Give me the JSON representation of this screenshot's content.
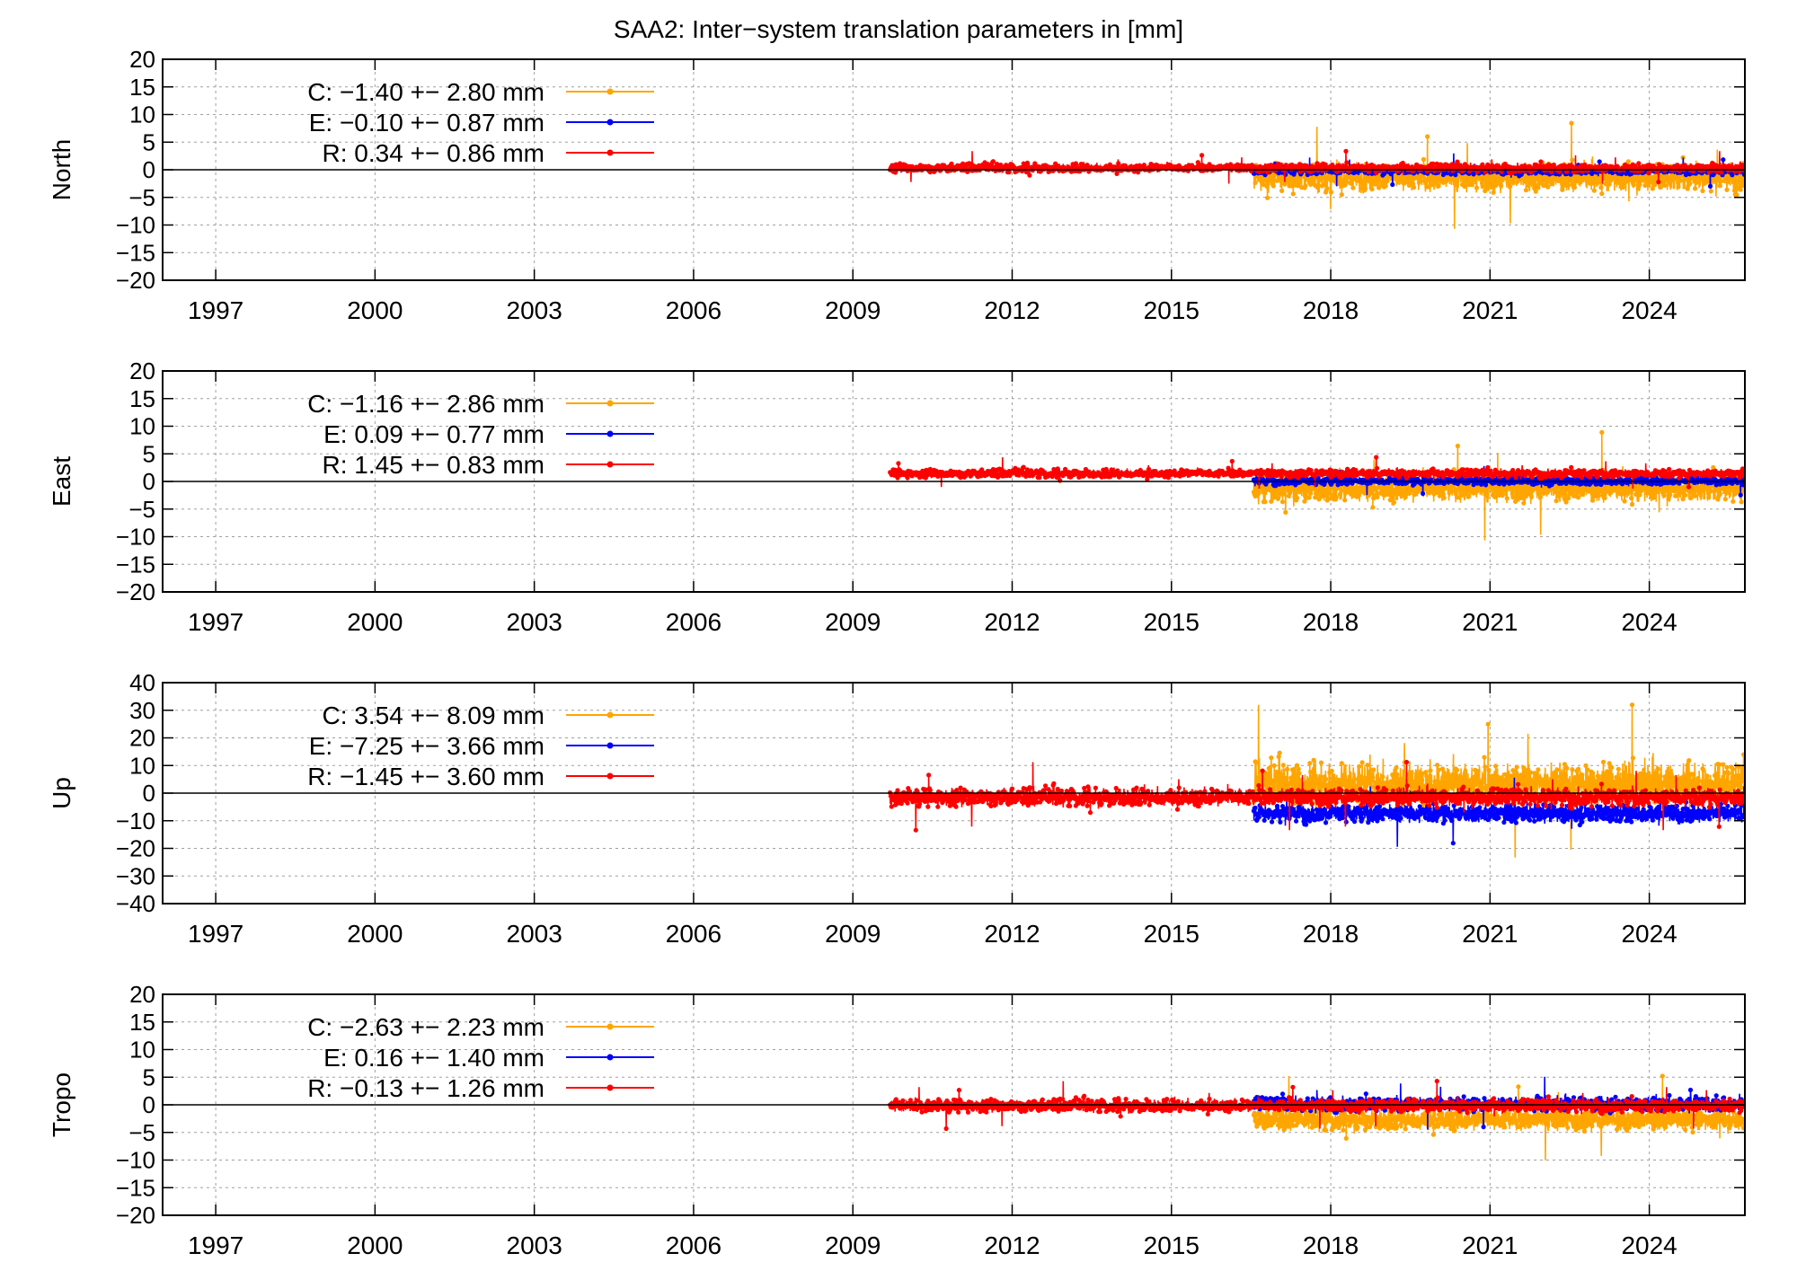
{
  "title": "SAA2: Inter−system translation parameters in [mm]",
  "colors": {
    "C": "#ffa500",
    "E": "#0000ff",
    "R": "#ff0000"
  },
  "x_tick_labels": [
    "1997",
    "2000",
    "2003",
    "2006",
    "2009",
    "2012",
    "2015",
    "2018",
    "2021",
    "2024"
  ],
  "chart_data": [
    {
      "type": "line",
      "ylabel": "North",
      "xlim": [
        1996.0,
        2025.8
      ],
      "ylim": [
        -20,
        20
      ],
      "yticks": [
        20,
        15,
        10,
        5,
        0,
        -5,
        -10,
        -15,
        -20
      ],
      "ytick_labels": [
        "20",
        "15",
        "10",
        "5",
        "0",
        "−5",
        "−10",
        "−15",
        "−20"
      ],
      "xticks": [
        1997,
        2000,
        2003,
        2006,
        2009,
        2012,
        2015,
        2018,
        2021,
        2024
      ],
      "grid": true,
      "legend_position": "top-left",
      "series": [
        {
          "key": "C",
          "name": "C:  −1.40 +− 2.80 mm",
          "color": "#ffa500",
          "mean": -1.4,
          "std": 2.8,
          "x_range": [
            2016.55,
            2025.8
          ]
        },
        {
          "key": "E",
          "name": "E:  −0.10 +− 0.87 mm",
          "color": "#0000ff",
          "mean": -0.1,
          "std": 0.87,
          "x_range": [
            2016.55,
            2025.8
          ]
        },
        {
          "key": "R",
          "name": "R:   0.34 +− 0.86 mm",
          "color": "#ff0000",
          "mean": 0.34,
          "std": 0.86,
          "x_range": [
            2009.7,
            2025.8
          ]
        }
      ]
    },
    {
      "type": "line",
      "ylabel": "East",
      "xlim": [
        1996.0,
        2025.8
      ],
      "ylim": [
        -20,
        20
      ],
      "yticks": [
        20,
        15,
        10,
        5,
        0,
        -5,
        -10,
        -15,
        -20
      ],
      "ytick_labels": [
        "20",
        "15",
        "10",
        "5",
        "0",
        "−5",
        "−10",
        "−15",
        "−20"
      ],
      "xticks": [
        1997,
        2000,
        2003,
        2006,
        2009,
        2012,
        2015,
        2018,
        2021,
        2024
      ],
      "grid": true,
      "legend_position": "top-left",
      "series": [
        {
          "key": "C",
          "name": "C:  −1.16 +− 2.86 mm",
          "color": "#ffa500",
          "mean": -1.16,
          "std": 2.86,
          "x_range": [
            2016.55,
            2025.8
          ]
        },
        {
          "key": "E",
          "name": "E:   0.09 +− 0.77 mm",
          "color": "#0000ff",
          "mean": 0.09,
          "std": 0.77,
          "x_range": [
            2016.55,
            2025.8
          ]
        },
        {
          "key": "R",
          "name": "R:   1.45 +− 0.83 mm",
          "color": "#ff0000",
          "mean": 1.45,
          "std": 0.83,
          "x_range": [
            2009.7,
            2025.8
          ]
        }
      ]
    },
    {
      "type": "line",
      "ylabel": "Up",
      "xlim": [
        1996.0,
        2025.8
      ],
      "ylim": [
        -40,
        40
      ],
      "yticks": [
        40,
        30,
        20,
        10,
        0,
        -10,
        -20,
        -30,
        -40
      ],
      "ytick_labels": [
        "40",
        "30",
        "20",
        "10",
        "0",
        "−10",
        "−20",
        "−30",
        "−40"
      ],
      "xticks": [
        1997,
        2000,
        2003,
        2006,
        2009,
        2012,
        2015,
        2018,
        2021,
        2024
      ],
      "grid": true,
      "legend_position": "top-left",
      "series": [
        {
          "key": "C",
          "name": "C:   3.54 +− 8.09 mm",
          "color": "#ffa500",
          "mean": 3.54,
          "std": 8.09,
          "x_range": [
            2016.55,
            2025.8
          ]
        },
        {
          "key": "E",
          "name": "E:  −7.25 +− 3.66 mm",
          "color": "#0000ff",
          "mean": -7.25,
          "std": 3.66,
          "x_range": [
            2016.55,
            2025.8
          ]
        },
        {
          "key": "R",
          "name": "R:  −1.45 +− 3.60 mm",
          "color": "#ff0000",
          "mean": -1.45,
          "std": 3.6,
          "x_range": [
            2009.7,
            2025.8
          ]
        }
      ]
    },
    {
      "type": "line",
      "ylabel": "Tropo",
      "xlim": [
        1996.0,
        2025.8
      ],
      "ylim": [
        -20,
        20
      ],
      "yticks": [
        20,
        15,
        10,
        5,
        0,
        -5,
        -10,
        -15,
        -20
      ],
      "ytick_labels": [
        "20",
        "15",
        "10",
        "5",
        "0",
        "−5",
        "−10",
        "−15",
        "−20"
      ],
      "xticks": [
        1997,
        2000,
        2003,
        2006,
        2009,
        2012,
        2015,
        2018,
        2021,
        2024
      ],
      "grid": true,
      "legend_position": "top-left",
      "series": [
        {
          "key": "C",
          "name": "C:  −2.63 +− 2.23 mm",
          "color": "#ffa500",
          "mean": -2.63,
          "std": 2.23,
          "x_range": [
            2016.55,
            2025.8
          ]
        },
        {
          "key": "E",
          "name": "E:   0.16 +− 1.40 mm",
          "color": "#0000ff",
          "mean": 0.16,
          "std": 1.4,
          "x_range": [
            2016.55,
            2025.8
          ]
        },
        {
          "key": "R",
          "name": "R:  −0.13 +− 1.26 mm",
          "color": "#ff0000",
          "mean": -0.13,
          "std": 1.26,
          "x_range": [
            2009.7,
            2025.8
          ]
        }
      ]
    }
  ]
}
